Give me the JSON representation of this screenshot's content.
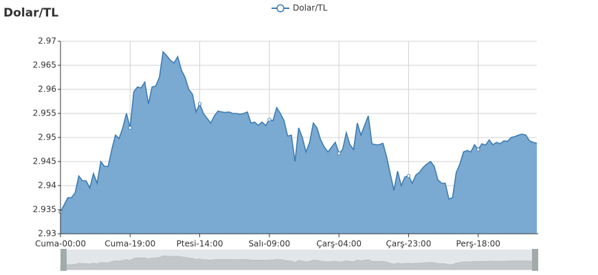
{
  "chart_data": {
    "type": "line",
    "title": "Dolar/TL",
    "categories": [
      "Cuma-00:00",
      null,
      null,
      null,
      null,
      null,
      null,
      null,
      null,
      null,
      null,
      null,
      null,
      null,
      null,
      null,
      null,
      null,
      null,
      "Cuma-19:00",
      null,
      null,
      null,
      null,
      null,
      null,
      null,
      null,
      null,
      null,
      null,
      null,
      null,
      null,
      null,
      null,
      null,
      null,
      "Ptesi-14:00",
      null,
      null,
      null,
      null,
      null,
      null,
      null,
      null,
      null,
      null,
      null,
      null,
      null,
      null,
      null,
      null,
      null,
      null,
      "Salı-09:00",
      null,
      null,
      null,
      null,
      null,
      null,
      null,
      null,
      null,
      null,
      null,
      null,
      null,
      null,
      null,
      null,
      null,
      null,
      "Çarş-04:00",
      null,
      null,
      null,
      null,
      null,
      null,
      null,
      null,
      null,
      null,
      null,
      null,
      null,
      null,
      null,
      null,
      null,
      null,
      "Çarş-23:00",
      null,
      null,
      null,
      null,
      null,
      null,
      null,
      null,
      null,
      null,
      null,
      null,
      null,
      null,
      null,
      null,
      null,
      null,
      "Perş-18:00",
      null,
      null,
      null,
      null,
      null,
      null,
      null,
      null,
      null,
      null,
      null,
      null,
      null,
      null,
      null,
      null
    ],
    "series": [
      {
        "name": "Dolar/TL",
        "color": "#3d7bb1",
        "values": [
          2.9345,
          2.936,
          2.9375,
          2.9375,
          2.9385,
          2.942,
          2.941,
          2.941,
          2.9395,
          2.9425,
          2.9405,
          2.945,
          2.944,
          2.944,
          2.9475,
          2.9505,
          2.9498,
          2.952,
          2.955,
          2.952,
          2.9595,
          2.9605,
          2.9603,
          2.9615,
          2.957,
          2.9605,
          2.9607,
          2.9625,
          2.9678,
          2.967,
          2.966,
          2.9655,
          2.9668,
          2.964,
          2.9625,
          2.96,
          2.959,
          2.9553,
          2.957,
          2.955,
          2.954,
          2.953,
          2.9545,
          2.9555,
          2.9553,
          2.9552,
          2.9553,
          2.955,
          2.955,
          2.9548,
          2.955,
          2.9553,
          2.953,
          2.9532,
          2.9525,
          2.9532,
          2.9525,
          2.9537,
          2.9535,
          2.9562,
          2.955,
          2.9535,
          2.9503,
          2.9505,
          2.945,
          2.952,
          2.95,
          2.947,
          2.949,
          2.953,
          2.952,
          2.9495,
          2.948,
          2.947,
          2.948,
          2.949,
          2.9467,
          2.9475,
          2.951,
          2.9485,
          2.9475,
          2.953,
          2.9505,
          2.9525,
          2.9545,
          2.9487,
          2.9485,
          2.9485,
          2.9488,
          2.946,
          2.9425,
          2.939,
          2.943,
          2.94,
          2.9418,
          2.942,
          2.9405,
          2.9422,
          2.9428,
          2.9438,
          2.9445,
          2.945,
          2.944,
          2.9412,
          2.9405,
          2.9405,
          2.9372,
          2.9375,
          2.9427,
          2.9445,
          2.947,
          2.9473,
          2.947,
          2.9485,
          2.9475,
          2.9487,
          2.9484,
          2.9495,
          2.9485,
          2.949,
          2.9487,
          2.9493,
          2.9492,
          2.95,
          2.9502,
          2.9505,
          2.9507,
          2.9505,
          2.9493,
          2.949,
          2.9488
        ]
      }
    ],
    "ylim": [
      2.93,
      2.97
    ],
    "yticks": [
      2.93,
      2.935,
      2.94,
      2.945,
      2.95,
      2.955,
      2.96,
      2.965,
      2.97
    ],
    "grid": true
  }
}
